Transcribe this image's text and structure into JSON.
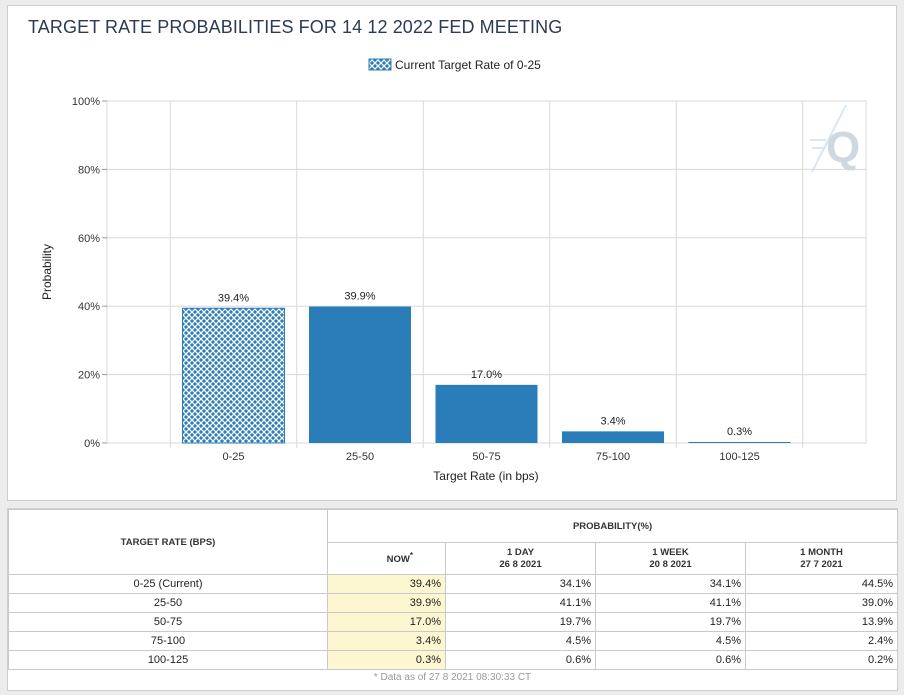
{
  "title": "TARGET RATE PROBABILITIES FOR 14 12 2022 FED MEETING",
  "legend_label": "Current Target Rate of 0-25",
  "watermark_icon": "q-logo-icon",
  "colors": {
    "bar": "#2a7db8",
    "bar_current_fill": "#2a7db8",
    "grid": "#d8d8d8",
    "now_highlight": "#fcf7d0",
    "title": "#2b3a55"
  },
  "chart_data": {
    "type": "bar",
    "title": "TARGET RATE PROBABILITIES FOR 14 12 2022 FED MEETING",
    "xlabel": "Target Rate (in bps)",
    "ylabel": "Probability",
    "categories": [
      "0-25",
      "25-50",
      "50-75",
      "75-100",
      "100-125"
    ],
    "values": [
      39.4,
      39.9,
      17.0,
      3.4,
      0.3
    ],
    "value_labels": [
      "39.4%",
      "39.9%",
      "17.0%",
      "3.4%",
      "0.3%"
    ],
    "current_category": "0-25",
    "ylim": [
      0,
      100
    ],
    "yticks": [
      0,
      20,
      40,
      60,
      80,
      100
    ],
    "ytick_labels": [
      "0%",
      "20%",
      "40%",
      "60%",
      "80%",
      "100%"
    ],
    "grid": true,
    "legend": "top-center"
  },
  "table": {
    "target_header": "TARGET RATE (BPS)",
    "probability_header": "PROBABILITY(%)",
    "columns": [
      {
        "label": "NOW",
        "sup": "*",
        "date": ""
      },
      {
        "label": "1 DAY",
        "date": "26 8 2021"
      },
      {
        "label": "1 WEEK",
        "date": "20 8 2021"
      },
      {
        "label": "1 MONTH",
        "date": "27 7 2021"
      }
    ],
    "rows": [
      {
        "rate": "0-25 (Current)",
        "now": "39.4%",
        "day": "34.1%",
        "week": "34.1%",
        "month": "44.5%"
      },
      {
        "rate": "25-50",
        "now": "39.9%",
        "day": "41.1%",
        "week": "41.1%",
        "month": "39.0%"
      },
      {
        "rate": "50-75",
        "now": "17.0%",
        "day": "19.7%",
        "week": "19.7%",
        "month": "13.9%"
      },
      {
        "rate": "75-100",
        "now": "3.4%",
        "day": "4.5%",
        "week": "4.5%",
        "month": "2.4%"
      },
      {
        "rate": "100-125",
        "now": "0.3%",
        "day": "0.6%",
        "week": "0.6%",
        "month": "0.2%"
      }
    ],
    "footnote": "* Data as of 27 8 2021 08:30:33 CT"
  }
}
